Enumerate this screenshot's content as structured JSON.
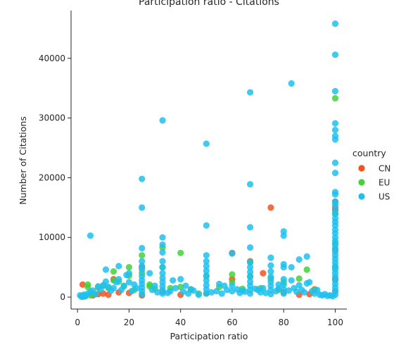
{
  "chart_data": {
    "type": "scatter",
    "title": "Participation ratio - Citations",
    "xlabel": "Participation ratio",
    "ylabel": "Number of Citations",
    "xlim": [
      -2.5,
      104.5
    ],
    "ylim": [
      -2000,
      48000
    ],
    "xticks": [
      0,
      20,
      40,
      60,
      80,
      100
    ],
    "yticks": [
      0,
      10000,
      20000,
      30000,
      40000
    ],
    "ytick_labels": [
      "0",
      "10000",
      "20000",
      "30000",
      "40000"
    ],
    "grid": false,
    "legend": {
      "title": "country",
      "placement": "right",
      "entries": [
        "CN",
        "EU",
        "US"
      ]
    },
    "series": [
      {
        "name": "CN",
        "color": "#f4511e",
        "points": [
          [
            2,
            2100
          ],
          [
            2.5,
            200
          ],
          [
            3,
            150
          ],
          [
            6,
            300
          ],
          [
            8,
            500
          ],
          [
            10,
            600
          ],
          [
            12,
            400
          ],
          [
            14,
            3000
          ],
          [
            16,
            800
          ],
          [
            20,
            700
          ],
          [
            25,
            5000
          ],
          [
            25,
            300
          ],
          [
            33,
            900
          ],
          [
            40,
            400
          ],
          [
            50,
            600
          ],
          [
            60,
            7400
          ],
          [
            60,
            3000
          ],
          [
            67,
            6000
          ],
          [
            72,
            4000
          ],
          [
            75,
            15000
          ],
          [
            80,
            800
          ],
          [
            86,
            400
          ],
          [
            90,
            500
          ],
          [
            92,
            1300
          ],
          [
            100,
            16000
          ],
          [
            100,
            15000
          ],
          [
            100,
            14500
          ],
          [
            100,
            8000
          ],
          [
            100,
            3000
          ],
          [
            100,
            1000
          ]
        ]
      },
      {
        "name": "EU",
        "color": "#43d23a",
        "points": [
          [
            3,
            150
          ],
          [
            4,
            2100
          ],
          [
            4,
            1700
          ],
          [
            5,
            300
          ],
          [
            6,
            600
          ],
          [
            8,
            1600
          ],
          [
            10,
            1900
          ],
          [
            12,
            1500
          ],
          [
            14,
            4300
          ],
          [
            14,
            2800
          ],
          [
            16,
            2600
          ],
          [
            18,
            1800
          ],
          [
            20,
            5000
          ],
          [
            20,
            3600
          ],
          [
            22,
            1200
          ],
          [
            25,
            7000
          ],
          [
            25,
            4000
          ],
          [
            28,
            1800
          ],
          [
            28,
            2100
          ],
          [
            30,
            1400
          ],
          [
            33,
            8300
          ],
          [
            33,
            5000
          ],
          [
            36,
            1500
          ],
          [
            40,
            7400
          ],
          [
            40,
            1700
          ],
          [
            44,
            1300
          ],
          [
            47,
            600
          ],
          [
            50,
            3500
          ],
          [
            55,
            1700
          ],
          [
            60,
            3800
          ],
          [
            60,
            2500
          ],
          [
            64,
            1400
          ],
          [
            67,
            5900
          ],
          [
            67,
            3500
          ],
          [
            71,
            1500
          ],
          [
            75,
            3100
          ],
          [
            78,
            1200
          ],
          [
            80,
            2500
          ],
          [
            86,
            3100
          ],
          [
            89,
            4600
          ],
          [
            92,
            1200
          ],
          [
            100,
            33300
          ],
          [
            100,
            14000
          ],
          [
            100,
            9000
          ],
          [
            100,
            5000
          ]
        ]
      },
      {
        "name": "US",
        "color": "#1ec0ef",
        "points": [
          [
            1,
            300
          ],
          [
            1.5,
            100
          ],
          [
            2,
            50
          ],
          [
            2.5,
            400
          ],
          [
            3,
            200
          ],
          [
            4,
            600
          ],
          [
            5,
            10300
          ],
          [
            5,
            900
          ],
          [
            6,
            1100
          ],
          [
            7,
            500
          ],
          [
            8,
            1800
          ],
          [
            9,
            1300
          ],
          [
            10,
            2000
          ],
          [
            11,
            4600
          ],
          [
            11,
            2600
          ],
          [
            12,
            1700
          ],
          [
            13,
            1100
          ],
          [
            14,
            1500
          ],
          [
            15,
            2500
          ],
          [
            16,
            5200
          ],
          [
            16,
            3000
          ],
          [
            17,
            1200
          ],
          [
            18,
            1900
          ],
          [
            19,
            3700
          ],
          [
            20,
            4000
          ],
          [
            20,
            2500
          ],
          [
            21,
            1000
          ],
          [
            22,
            2100
          ],
          [
            23,
            1500
          ],
          [
            25,
            19800
          ],
          [
            25,
            15000
          ],
          [
            25,
            8200
          ],
          [
            25,
            6000
          ],
          [
            25,
            5200
          ],
          [
            25,
            4600
          ],
          [
            25,
            3500
          ],
          [
            25,
            2800
          ],
          [
            25,
            2200
          ],
          [
            25,
            1600
          ],
          [
            25,
            1000
          ],
          [
            25,
            500
          ],
          [
            28,
            4000
          ],
          [
            29,
            1200
          ],
          [
            30,
            1900
          ],
          [
            31,
            800
          ],
          [
            33,
            29600
          ],
          [
            33,
            10000
          ],
          [
            33,
            8800
          ],
          [
            33,
            7500
          ],
          [
            33,
            6000
          ],
          [
            33,
            5000
          ],
          [
            33,
            4000
          ],
          [
            33,
            3200
          ],
          [
            33,
            2500
          ],
          [
            33,
            1800
          ],
          [
            33,
            1200
          ],
          [
            33,
            600
          ],
          [
            35,
            700
          ],
          [
            36,
            1000
          ],
          [
            37,
            2800
          ],
          [
            38,
            1500
          ],
          [
            40,
            3000
          ],
          [
            41,
            900
          ],
          [
            42,
            1900
          ],
          [
            43,
            600
          ],
          [
            44,
            1300
          ],
          [
            45,
            1100
          ],
          [
            47,
            400
          ],
          [
            50,
            25700
          ],
          [
            50,
            12000
          ],
          [
            50,
            7000
          ],
          [
            50,
            6000
          ],
          [
            50,
            5200
          ],
          [
            50,
            4400
          ],
          [
            50,
            3600
          ],
          [
            50,
            2800
          ],
          [
            50,
            2000
          ],
          [
            50,
            1300
          ],
          [
            50,
            600
          ],
          [
            52,
            800
          ],
          [
            54,
            1000
          ],
          [
            55,
            2200
          ],
          [
            56,
            600
          ],
          [
            57,
            1900
          ],
          [
            58,
            1200
          ],
          [
            60,
            7300
          ],
          [
            60,
            1900
          ],
          [
            60,
            1000
          ],
          [
            62,
            1300
          ],
          [
            63,
            700
          ],
          [
            64,
            1100
          ],
          [
            65,
            900
          ],
          [
            67,
            34300
          ],
          [
            67,
            18900
          ],
          [
            67,
            11700
          ],
          [
            67,
            8300
          ],
          [
            67,
            5800
          ],
          [
            67,
            5000
          ],
          [
            67,
            4200
          ],
          [
            67,
            3400
          ],
          [
            67,
            2600
          ],
          [
            67,
            1900
          ],
          [
            67,
            1200
          ],
          [
            67,
            600
          ],
          [
            69,
            1400
          ],
          [
            70,
            1200
          ],
          [
            71,
            800
          ],
          [
            72,
            1500
          ],
          [
            73,
            700
          ],
          [
            75,
            6600
          ],
          [
            75,
            5300
          ],
          [
            75,
            4300
          ],
          [
            75,
            3400
          ],
          [
            75,
            2600
          ],
          [
            75,
            1900
          ],
          [
            75,
            1200
          ],
          [
            75,
            500
          ],
          [
            77,
            1000
          ],
          [
            78,
            2100
          ],
          [
            78,
            1400
          ],
          [
            80,
            11000
          ],
          [
            80,
            10300
          ],
          [
            80,
            5500
          ],
          [
            80,
            5000
          ],
          [
            80,
            3000
          ],
          [
            80,
            2100
          ],
          [
            80,
            1300
          ],
          [
            80,
            600
          ],
          [
            82,
            1100
          ],
          [
            83,
            35800
          ],
          [
            83,
            5000
          ],
          [
            83,
            2800
          ],
          [
            84,
            1500
          ],
          [
            85,
            900
          ],
          [
            86,
            6300
          ],
          [
            86,
            2000
          ],
          [
            87,
            1200
          ],
          [
            88,
            800
          ],
          [
            89,
            6800
          ],
          [
            89,
            2300
          ],
          [
            90,
            2500
          ],
          [
            91,
            1000
          ],
          [
            92,
            600
          ],
          [
            93,
            1200
          ],
          [
            94,
            400
          ],
          [
            95,
            300
          ],
          [
            96,
            500
          ],
          [
            97,
            200
          ],
          [
            98,
            300
          ],
          [
            99,
            150
          ],
          [
            100,
            45800
          ],
          [
            100,
            40600
          ],
          [
            100,
            34500
          ],
          [
            100,
            29100
          ],
          [
            100,
            28000
          ],
          [
            100,
            27000
          ],
          [
            100,
            26400
          ],
          [
            100,
            22500
          ],
          [
            100,
            20800
          ],
          [
            100,
            17600
          ],
          [
            100,
            17200
          ],
          [
            100,
            16000
          ],
          [
            100,
            15500
          ],
          [
            100,
            14600
          ],
          [
            100,
            13900
          ],
          [
            100,
            13200
          ],
          [
            100,
            12600
          ],
          [
            100,
            12000
          ],
          [
            100,
            11300
          ],
          [
            100,
            10700
          ],
          [
            100,
            10000
          ],
          [
            100,
            9400
          ],
          [
            100,
            8800
          ],
          [
            100,
            8200
          ],
          [
            100,
            7600
          ],
          [
            100,
            7000
          ],
          [
            100,
            6400
          ],
          [
            100,
            5800
          ],
          [
            100,
            5200
          ],
          [
            100,
            4600
          ],
          [
            100,
            4000
          ],
          [
            100,
            3400
          ],
          [
            100,
            2800
          ],
          [
            100,
            2200
          ],
          [
            100,
            1600
          ],
          [
            100,
            1000
          ],
          [
            100,
            400
          ]
        ]
      }
    ]
  }
}
